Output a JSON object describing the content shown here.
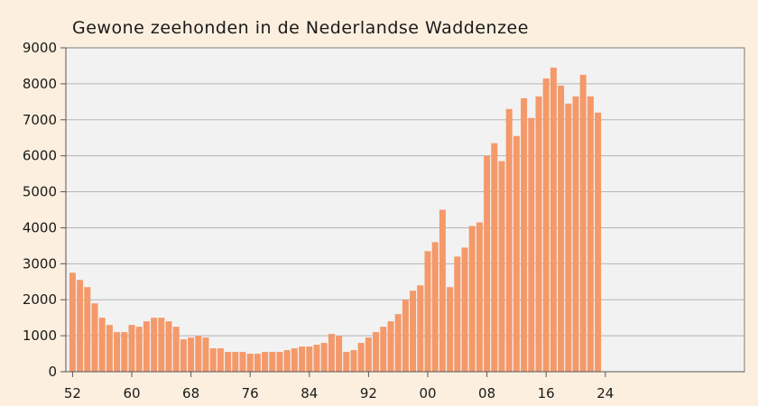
{
  "chart_data": {
    "type": "bar",
    "title": "Gewone zeehonden in de Nederlandse Waddenzee",
    "xlabel": "",
    "ylabel": "",
    "ylim": [
      0,
      9000
    ],
    "yticks": [
      "0",
      "1000",
      "2000",
      "3000",
      "4000",
      "5000",
      "6000",
      "7000",
      "8000",
      "9000"
    ],
    "xticks": [
      "52",
      "60",
      "68",
      "76",
      "84",
      "92",
      "00",
      "08",
      "16",
      "24"
    ],
    "grid": true,
    "legend": "none",
    "bar_color": "#f4996a",
    "plot_background": "#f2f2f2",
    "categories": [
      "1952",
      "1953",
      "1954",
      "1955",
      "1956",
      "1957",
      "1958",
      "1959",
      "1960",
      "1961",
      "1962",
      "1963",
      "1964",
      "1965",
      "1966",
      "1967",
      "1968",
      "1969",
      "1970",
      "1971",
      "1972",
      "1973",
      "1974",
      "1975",
      "1976",
      "1977",
      "1978",
      "1979",
      "1980",
      "1981",
      "1982",
      "1983",
      "1984",
      "1985",
      "1986",
      "1987",
      "1988",
      "1989",
      "1990",
      "1991",
      "1992",
      "1993",
      "1994",
      "1995",
      "1996",
      "1997",
      "1998",
      "1999",
      "2000",
      "2001",
      "2002",
      "2003",
      "2004",
      "2005",
      "2006",
      "2007",
      "2008",
      "2009",
      "2010",
      "2011",
      "2012",
      "2013",
      "2014",
      "2015",
      "2016",
      "2017",
      "2018",
      "2019",
      "2020",
      "2021",
      "2022",
      "2023"
    ],
    "values": [
      2750,
      2550,
      2350,
      1900,
      1500,
      1300,
      1100,
      1100,
      1300,
      1250,
      1400,
      1500,
      1500,
      1400,
      1250,
      900,
      950,
      1000,
      950,
      650,
      650,
      550,
      550,
      550,
      500,
      500,
      550,
      550,
      550,
      600,
      650,
      700,
      700,
      750,
      800,
      1050,
      1000,
      550,
      600,
      800,
      950,
      1100,
      1250,
      1400,
      1600,
      2000,
      2250,
      2400,
      3350,
      3600,
      4500,
      2350,
      3200,
      3450,
      4050,
      4150,
      6000,
      6350,
      5850,
      7300,
      6550,
      7600,
      7050,
      7650,
      8150,
      8450,
      7950,
      7450,
      7650,
      8250,
      7650,
      7200
    ]
  }
}
